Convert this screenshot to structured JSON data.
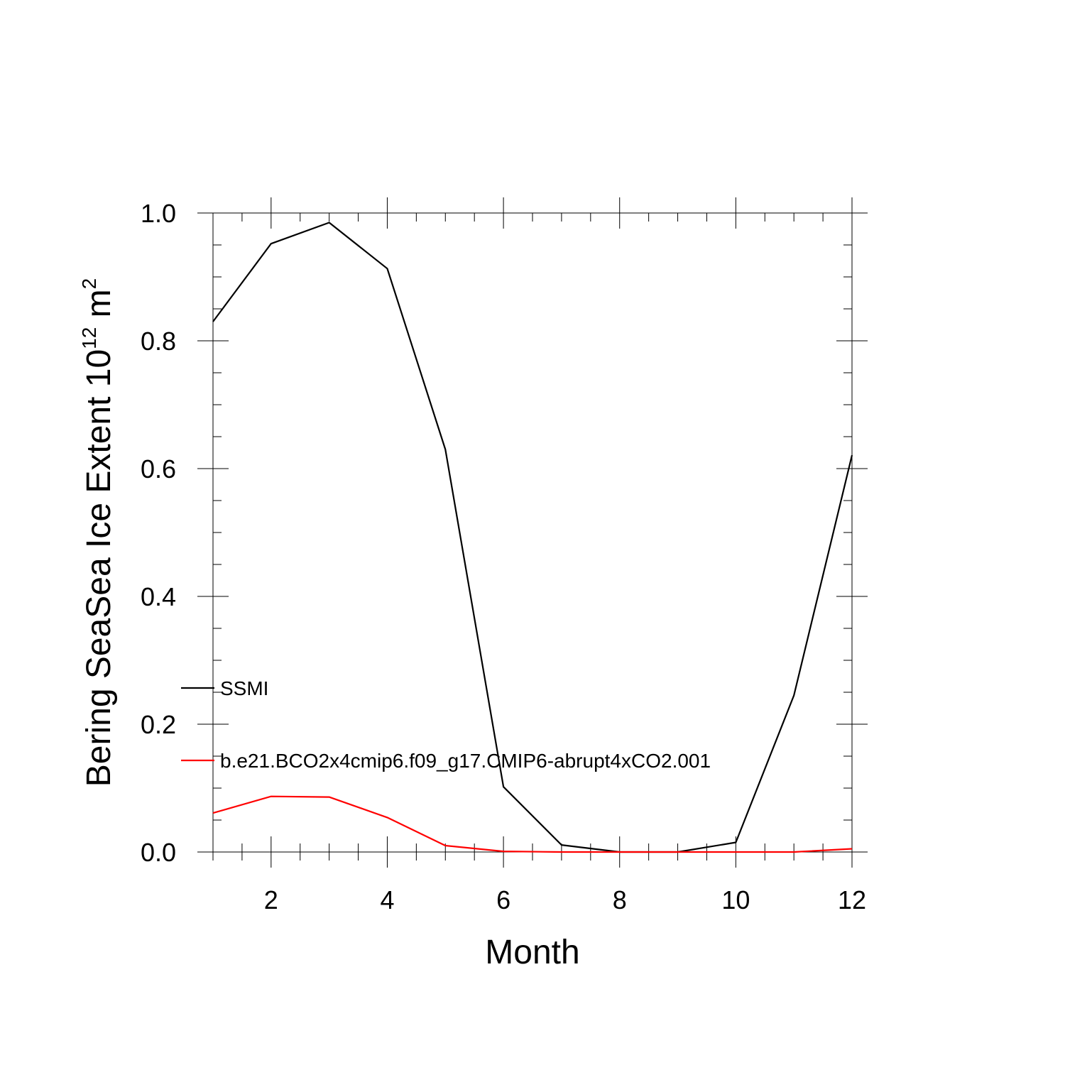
{
  "chart_data": {
    "type": "line",
    "title": "",
    "xlabel": "Month",
    "ylabel": {
      "main": "Bering SeaSea Ice Extent 10",
      "sup1": "12",
      "unit": " m",
      "sup2": "2"
    },
    "xlim": [
      1,
      12
    ],
    "ylim": [
      0,
      1.0
    ],
    "x_ticks": [
      2,
      4,
      6,
      8,
      10,
      12
    ],
    "x_tick_labels": [
      "2",
      "4",
      "6",
      "8",
      "10",
      "12"
    ],
    "y_ticks": [
      0.0,
      0.2,
      0.4,
      0.6,
      0.8,
      1.0
    ],
    "y_tick_labels": [
      "0.0",
      "0.2",
      "0.4",
      "0.6",
      "0.8",
      "1.0"
    ],
    "grid": false,
    "legend_position": "left, inside plot",
    "x": [
      1,
      2,
      3,
      4,
      5,
      6,
      7,
      8,
      9,
      10,
      11,
      12
    ],
    "series": [
      {
        "name": "SSMI",
        "color": "#000000",
        "values": [
          0.83,
          0.952,
          0.985,
          0.913,
          0.63,
          0.102,
          0.011,
          0.0,
          0.0,
          0.015,
          0.245,
          0.621
        ]
      },
      {
        "name": "b.e21.BCO2x4cmip6.f09_g17.CMIP6-abrupt4xCO2.001",
        "color": "#ff0000",
        "values": [
          0.061,
          0.087,
          0.086,
          0.054,
          0.01,
          0.001,
          0.0,
          0.0,
          0.0,
          0.0,
          0.0,
          0.005
        ]
      }
    ]
  }
}
